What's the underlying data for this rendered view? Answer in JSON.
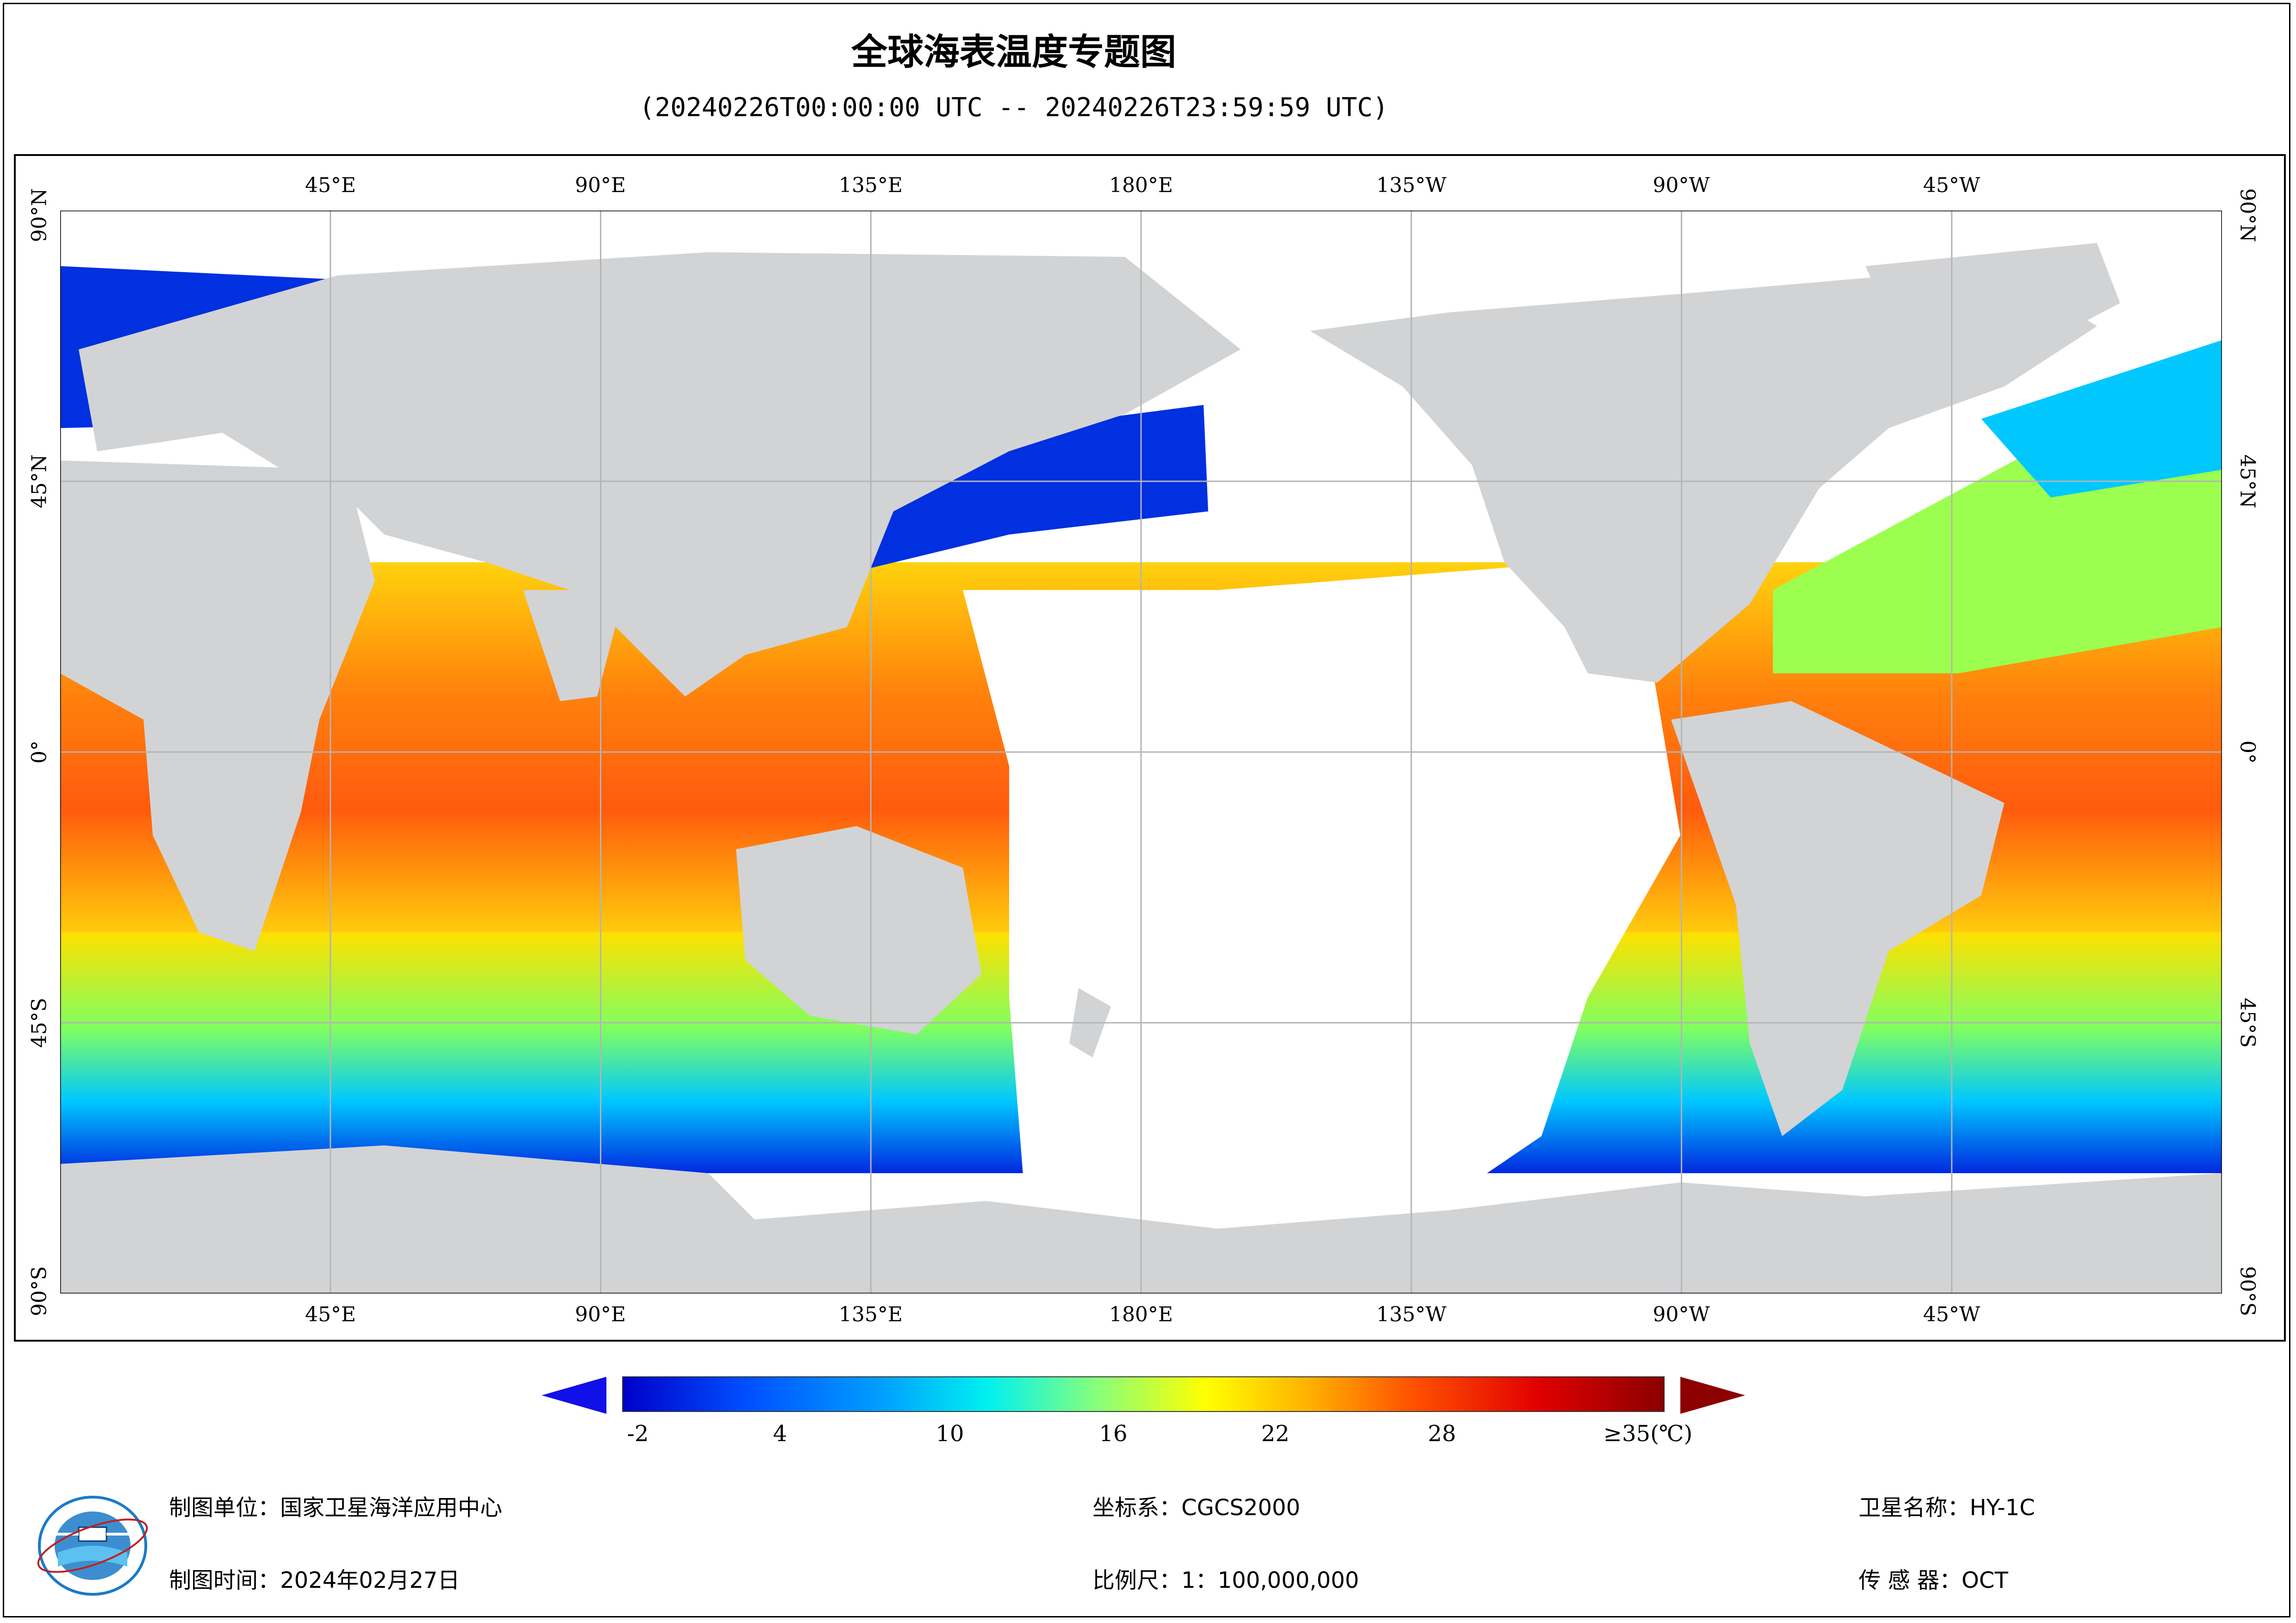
{
  "title": "全球海表温度专题图",
  "subtitle": "(20240226T00:00:00 UTC -- 20240226T23:59:59 UTC)",
  "map": {
    "top_lon_labels": [
      "45°E",
      "90°E",
      "135°E",
      "180°E",
      "135°W",
      "90°W",
      "45°W"
    ],
    "bottom_lon_labels": [
      "45°E",
      "90°E",
      "135°E",
      "180°E",
      "135°W",
      "90°W",
      "45°W"
    ],
    "left_lat_labels": [
      "90°N",
      "45°N",
      "0°",
      "45°S",
      "90°S"
    ],
    "right_lat_labels": [
      "90°N",
      "45°N",
      "0°",
      "45°S",
      "90°S"
    ],
    "colors": {
      "land": "#d2d3d5",
      "no_data": "#ffffff",
      "gridline": "#b4b4b4"
    }
  },
  "colorbar": {
    "tick_labels": [
      "-2",
      "4",
      "10",
      "16",
      "22",
      "28",
      "≥35(℃)"
    ],
    "min": -2,
    "max": 35,
    "unit": "℃",
    "colors": [
      "#0000c8",
      "#0050ff",
      "#00c8ff",
      "#40ffc0",
      "#a0ff50",
      "#ffff00",
      "#ffb000",
      "#ff5000",
      "#e60000",
      "#8c0000"
    ]
  },
  "footer": {
    "unit_label": "制图单位：国家卫星海洋应用中心",
    "time_label": "制图时间：2024年02月27日",
    "crs_label": "坐标系：CGCS2000",
    "scale_label": "比例尺：1：100,000,000",
    "satellite_label": "卫星名称：HY-1C",
    "sensor_label": "传 感 器：OCT"
  },
  "logo": {
    "icon": "nsoas-logo-icon"
  }
}
